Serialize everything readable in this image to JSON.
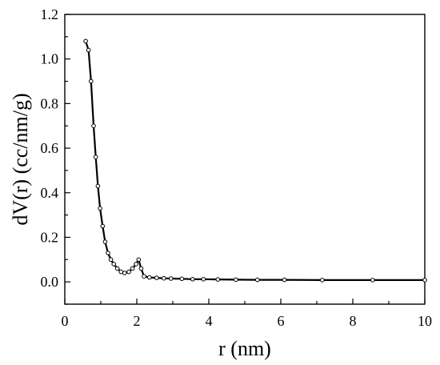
{
  "chart_data": {
    "type": "line",
    "xlabel": "r (nm)",
    "ylabel": "dV(r) (cc/nm/g)",
    "xlim": [
      0,
      10
    ],
    "ylim": [
      -0.1,
      1.2
    ],
    "x_ticks": [
      "0",
      "2",
      "4",
      "6",
      "8",
      "10"
    ],
    "y_ticks": [
      "0.0",
      "0.2",
      "0.4",
      "0.6",
      "0.8",
      "1.0",
      "1.2"
    ],
    "grid": false,
    "legend": "none",
    "series": [
      {
        "marker": "open-circle",
        "color": "#000000",
        "points": [
          [
            0.58,
            1.08
          ],
          [
            0.66,
            1.04
          ],
          [
            0.73,
            0.9
          ],
          [
            0.8,
            0.7
          ],
          [
            0.86,
            0.56
          ],
          [
            0.92,
            0.43
          ],
          [
            0.98,
            0.33
          ],
          [
            1.05,
            0.25
          ],
          [
            1.12,
            0.18
          ],
          [
            1.2,
            0.13
          ],
          [
            1.28,
            0.1
          ],
          [
            1.36,
            0.08
          ],
          [
            1.46,
            0.06
          ],
          [
            1.56,
            0.045
          ],
          [
            1.66,
            0.04
          ],
          [
            1.78,
            0.045
          ],
          [
            1.88,
            0.06
          ],
          [
            1.98,
            0.08
          ],
          [
            2.05,
            0.1
          ],
          [
            2.12,
            0.06
          ],
          [
            2.2,
            0.025
          ],
          [
            2.35,
            0.02
          ],
          [
            2.55,
            0.018
          ],
          [
            2.75,
            0.016
          ],
          [
            2.95,
            0.015
          ],
          [
            3.25,
            0.014
          ],
          [
            3.55,
            0.012
          ],
          [
            3.85,
            0.012
          ],
          [
            4.25,
            0.011
          ],
          [
            4.75,
            0.01
          ],
          [
            5.35,
            0.009
          ],
          [
            6.1,
            0.009
          ],
          [
            7.15,
            0.008
          ],
          [
            8.55,
            0.008
          ],
          [
            10.0,
            0.008
          ]
        ]
      }
    ]
  }
}
